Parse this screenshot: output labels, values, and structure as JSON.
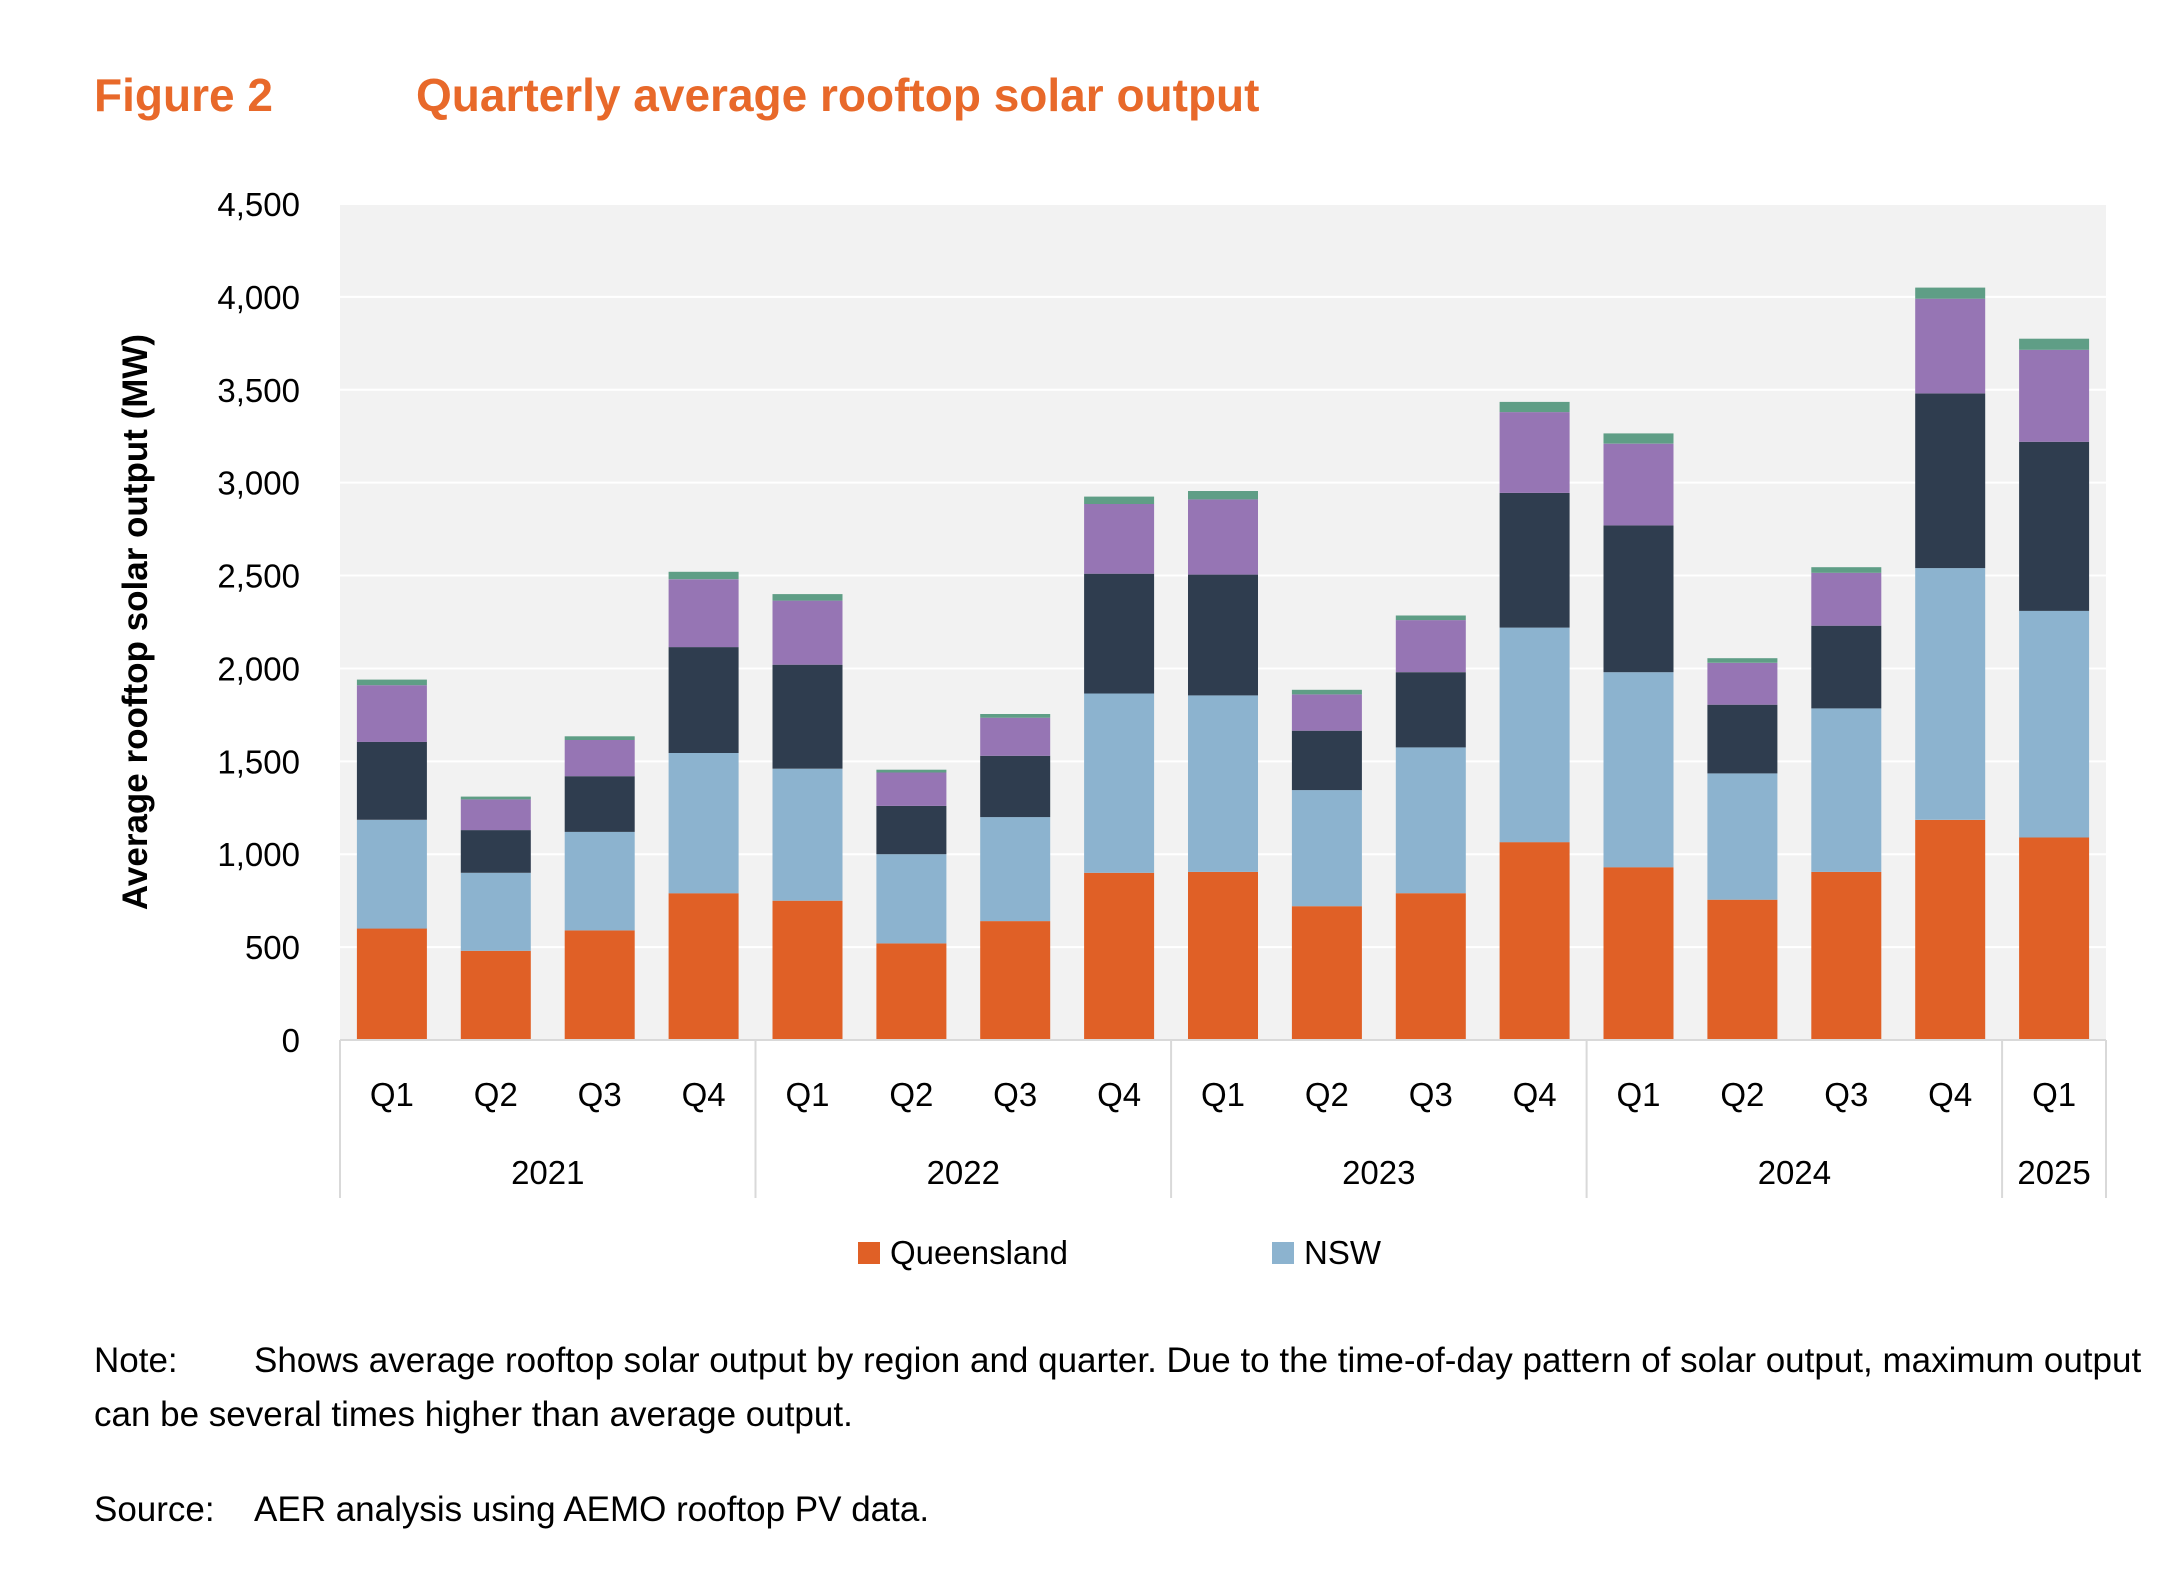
{
  "figure": {
    "label": "Figure 2",
    "title": "Quarterly average rooftop solar output"
  },
  "chart_data": {
    "type": "bar",
    "stacked": true,
    "title": "Quarterly average rooftop solar output",
    "xlabel": "",
    "ylabel": "Average rooftop solar output  (MW)",
    "ylim": [
      0,
      4500
    ],
    "yticks": [
      0,
      500,
      1000,
      1500,
      2000,
      2500,
      3000,
      3500,
      4000,
      4500
    ],
    "ytick_labels": [
      "0",
      "500",
      "1,000",
      "1,500",
      "2,000",
      "2,500",
      "3,000",
      "3,500",
      "4,000",
      "4,500"
    ],
    "grid": true,
    "categories": [
      "Q1",
      "Q2",
      "Q3",
      "Q4",
      "Q1",
      "Q2",
      "Q3",
      "Q4",
      "Q1",
      "Q2",
      "Q3",
      "Q4",
      "Q1",
      "Q2",
      "Q3",
      "Q4",
      "Q1"
    ],
    "groups": [
      {
        "label": "2021",
        "count": 4
      },
      {
        "label": "2022",
        "count": 4
      },
      {
        "label": "2023",
        "count": 4
      },
      {
        "label": "2024",
        "count": 4
      },
      {
        "label": "2025",
        "count": 1
      }
    ],
    "series": [
      {
        "name": "Queensland",
        "color": "#E06026",
        "values": [
          600,
          480,
          590,
          790,
          750,
          520,
          640,
          900,
          905,
          720,
          790,
          1065,
          930,
          755,
          905,
          1185,
          1090
        ]
      },
      {
        "name": "NSW",
        "color": "#8CB3CF",
        "values": [
          585,
          420,
          530,
          755,
          710,
          480,
          560,
          965,
          950,
          625,
          785,
          1155,
          1050,
          680,
          880,
          1355,
          1220
        ]
      },
      {
        "name": "",
        "color": "#2F3D4F",
        "values": [
          420,
          230,
          300,
          570,
          560,
          260,
          330,
          645,
          650,
          320,
          405,
          725,
          790,
          370,
          445,
          940,
          910
        ]
      },
      {
        "name": "",
        "color": "#9675B4",
        "values": [
          305,
          165,
          195,
          365,
          345,
          180,
          205,
          375,
          405,
          195,
          280,
          435,
          440,
          225,
          285,
          510,
          495
        ]
      },
      {
        "name": "",
        "color": "#5F9E86",
        "values": [
          30,
          15,
          20,
          40,
          35,
          15,
          20,
          40,
          45,
          25,
          25,
          55,
          55,
          25,
          30,
          60,
          60
        ]
      }
    ],
    "legend": [
      "Queensland",
      "NSW"
    ],
    "legend_position": "bottom"
  },
  "note": {
    "label": "Note:",
    "text": "Shows average rooftop solar output by region and quarter. Due to the time-of-day pattern of solar output, maximum output can be several times higher than average output."
  },
  "source": {
    "label": "Source:",
    "text": "AER analysis using AEMO rooftop PV data."
  }
}
